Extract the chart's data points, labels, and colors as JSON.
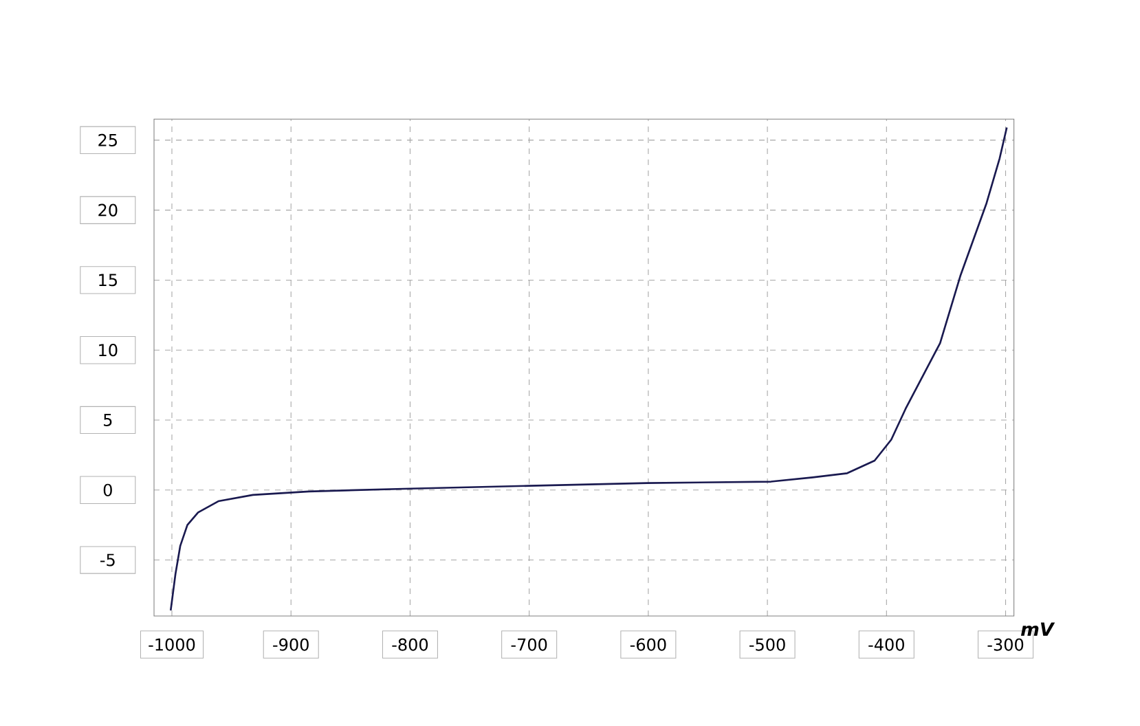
{
  "chart_data": {
    "type": "line",
    "xlabel": "mV",
    "x": [
      -1001,
      -997,
      -993,
      -987,
      -978,
      -961,
      -932,
      -885,
      -800,
      -700,
      -601,
      -497,
      -462,
      -433,
      -410,
      -396,
      -384,
      -355,
      -338,
      -316,
      -305,
      -299
    ],
    "series": [
      {
        "color": "#1a1a50",
        "values": [
          -8.6,
          -6,
          -4,
          -2.5,
          -1.6,
          -0.8,
          -0.35,
          -0.1,
          0.1,
          0.3,
          0.5,
          0.6,
          0.9,
          1.2,
          2.1,
          3.6,
          5.8,
          10.5,
          15.3,
          20.5,
          23.7,
          25.9
        ]
      }
    ],
    "xlim": [
      -1015,
      -293
    ],
    "ylim": [
      -9,
      26.5
    ],
    "xticks": [
      -1000,
      -900,
      -800,
      -700,
      -600,
      -500,
      -400,
      -300
    ],
    "yticks": [
      -5,
      0,
      5,
      10,
      15,
      20,
      25
    ],
    "grid": true,
    "marker": "none",
    "line_style": "solid"
  }
}
